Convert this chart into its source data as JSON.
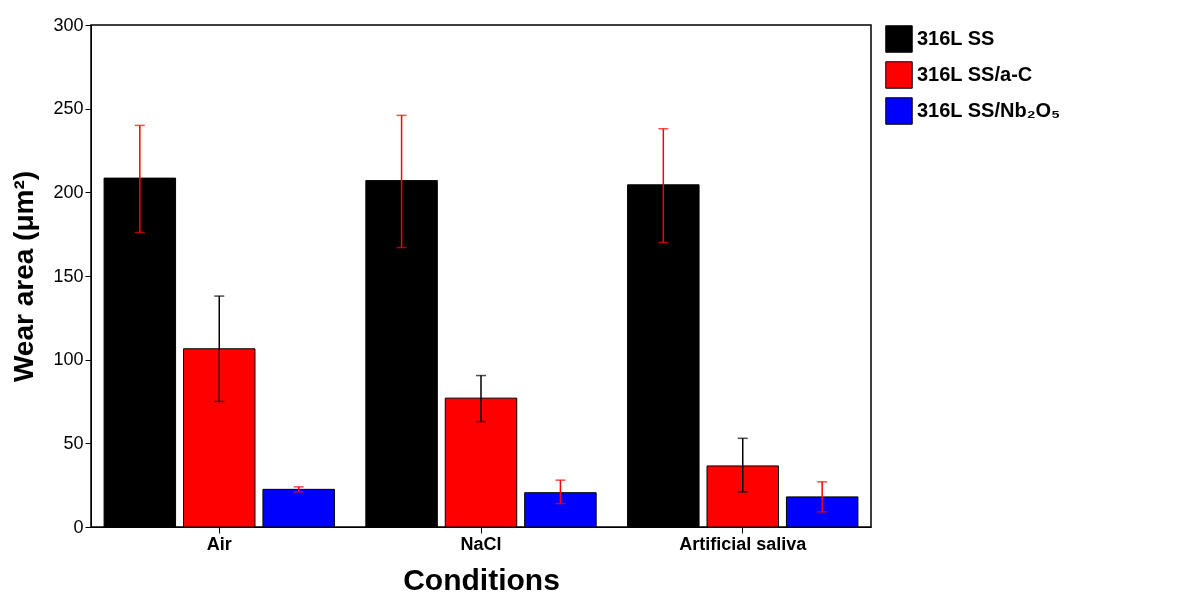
{
  "chart_data": {
    "type": "bar",
    "xlabel": "Conditions",
    "ylabel": "Wear area (μm²)",
    "categories": [
      "Air",
      "NaCl",
      "Artificial saliva"
    ],
    "series": [
      {
        "name": "316L SS",
        "color": "#000000",
        "values": [
          208.5,
          207,
          204.5
        ],
        "errors": [
          [
            176,
            240
          ],
          [
            167,
            246
          ],
          [
            170,
            238
          ]
        ]
      },
      {
        "name": "316L SS/a-C",
        "color": "#ff0000",
        "values": [
          106.5,
          77,
          36.5
        ],
        "errors": [
          [
            75,
            138
          ],
          [
            63,
            90.5
          ],
          [
            21,
            53
          ]
        ]
      },
      {
        "name": "316L SS/Nb₂O₅",
        "color": "#0000ff",
        "values": [
          22.5,
          20.5,
          18
        ],
        "errors": [
          [
            21,
            24
          ],
          [
            14,
            28
          ],
          [
            9,
            27
          ]
        ]
      }
    ],
    "ylim": [
      0,
      300
    ],
    "yticks": [
      0,
      50,
      100,
      150,
      200,
      250,
      300
    ],
    "grid": false,
    "legend": "top right"
  }
}
